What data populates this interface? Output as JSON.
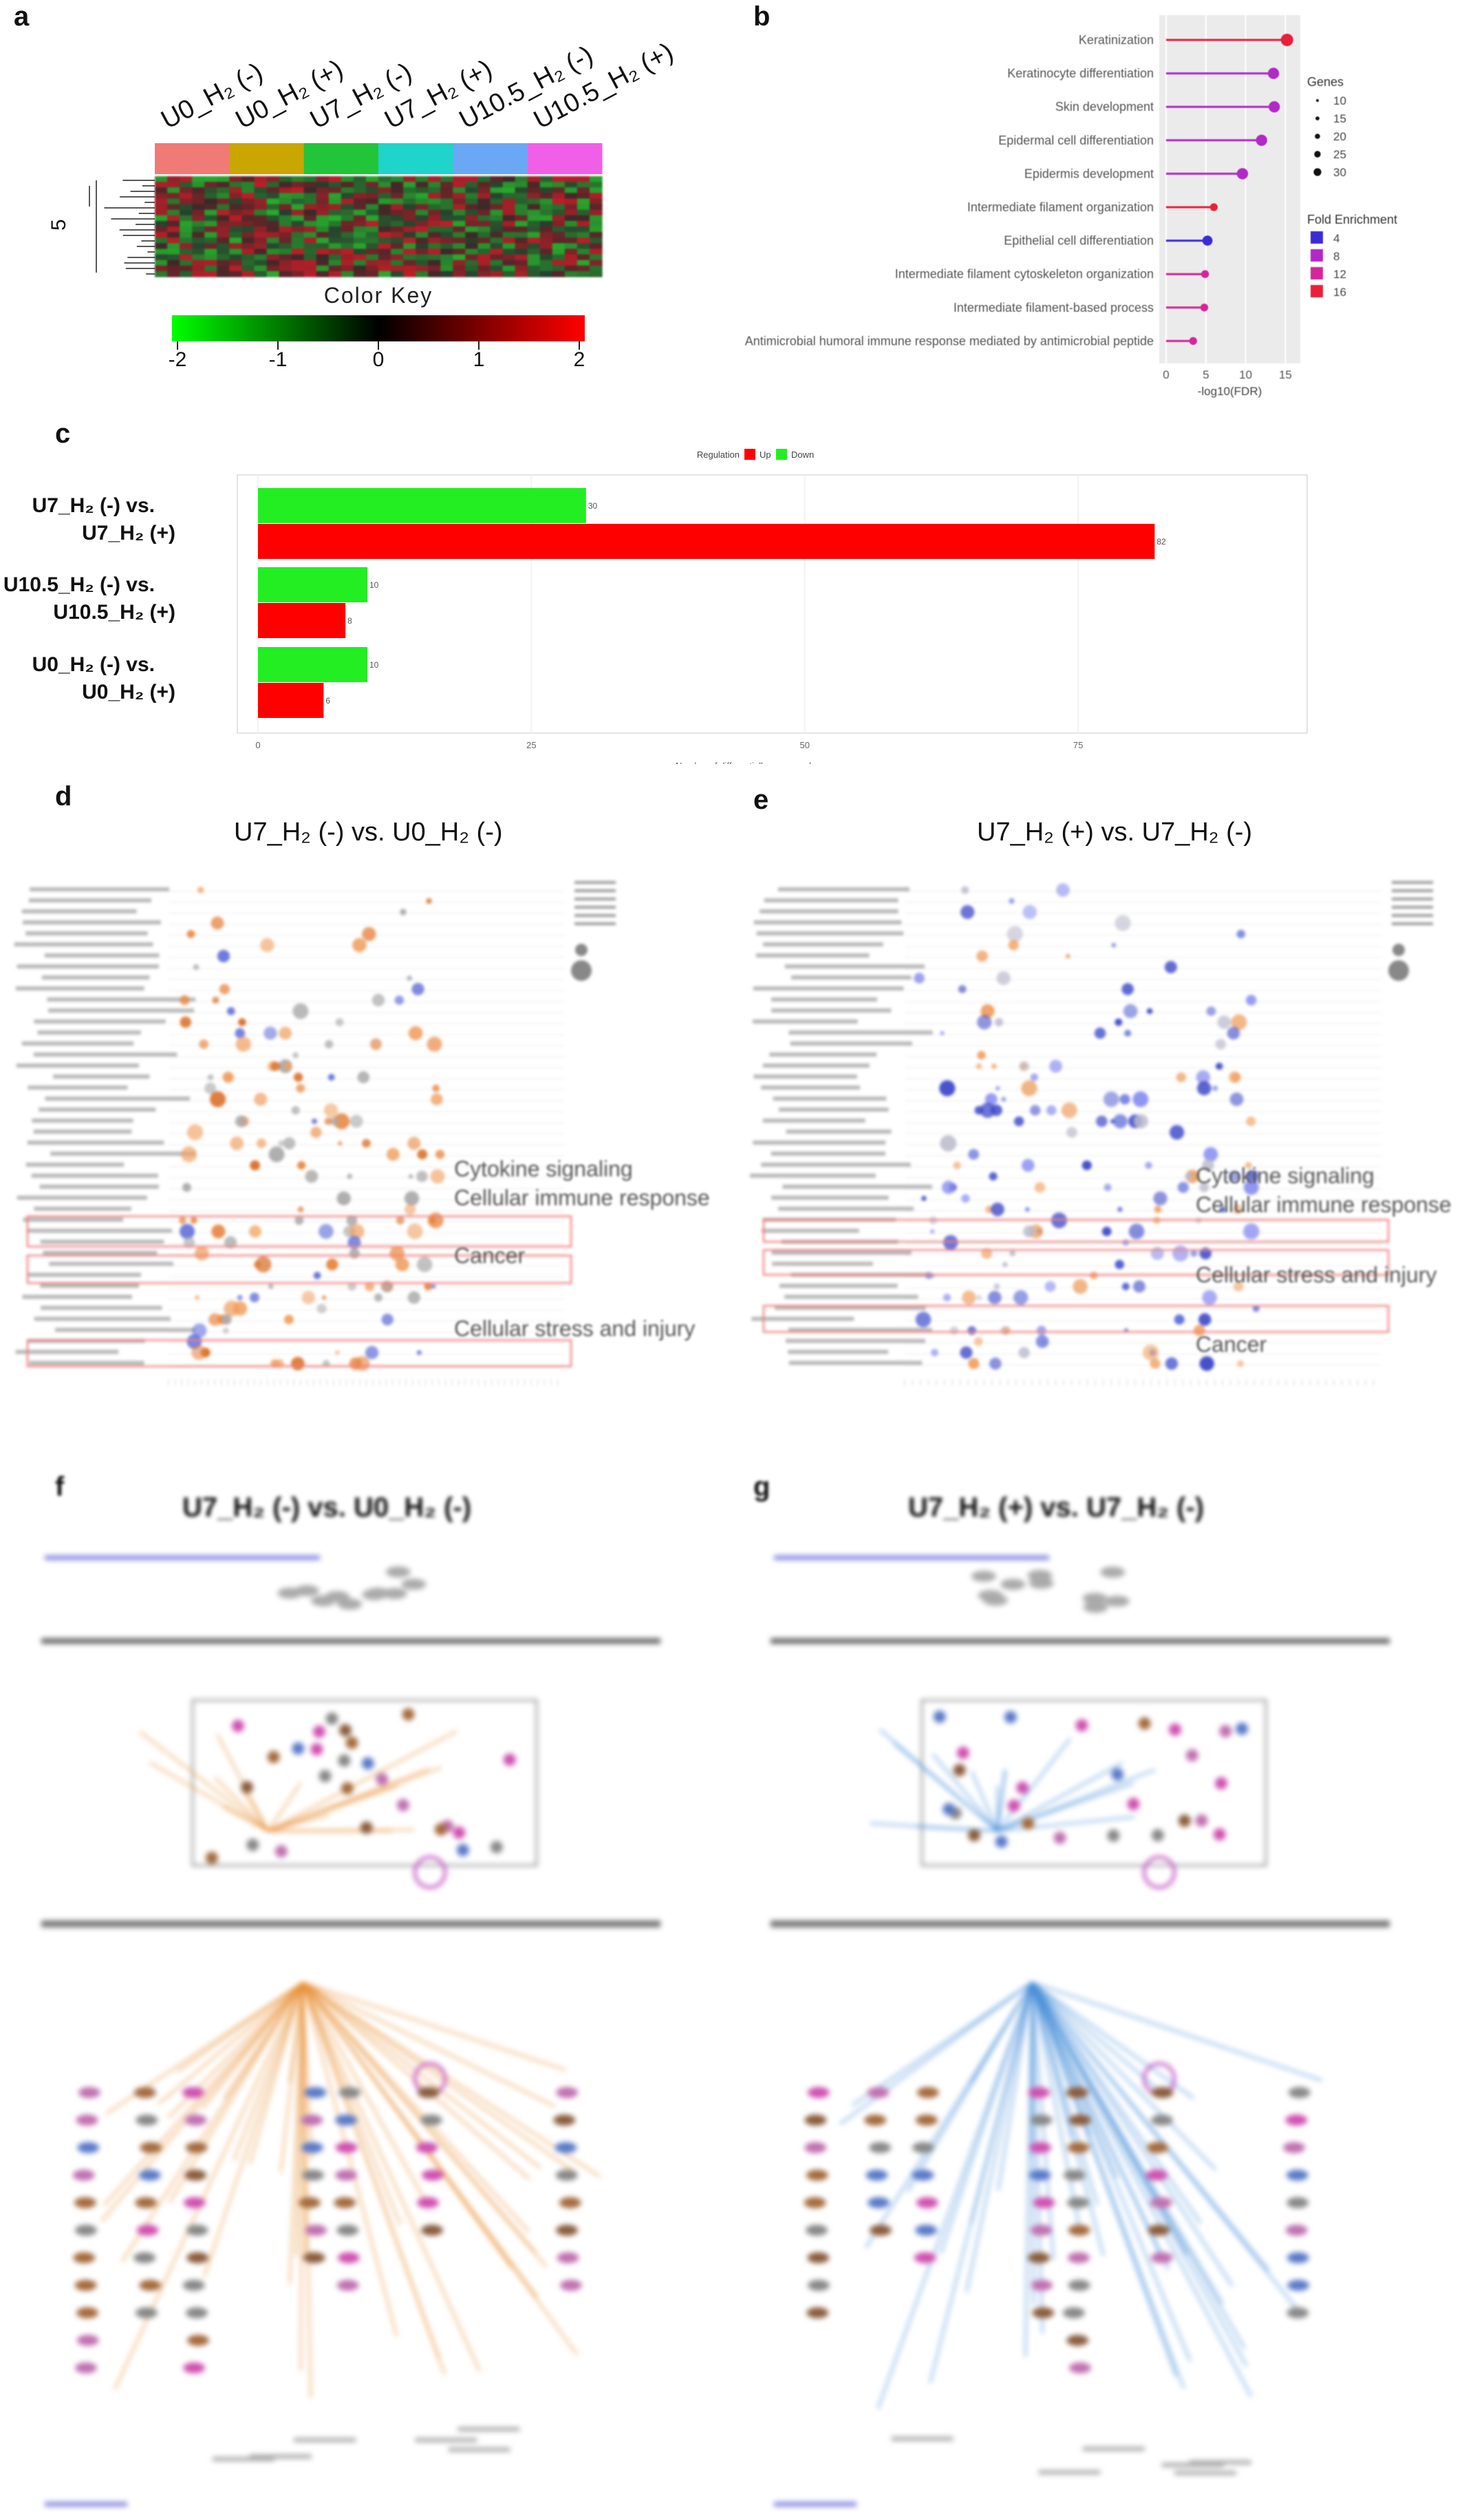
{
  "panels": {
    "a": "a",
    "b": "b",
    "c": "c",
    "d": "d",
    "e": "e",
    "f": "f",
    "g": "g"
  },
  "panel_a": {
    "columns": [
      "U0_H₂ (-)",
      "U0_H₂ (+)",
      "U7_H₂ (-)",
      "U7_H₂ (+)",
      "U10.5_H₂ (-)",
      "U10.5_H₂ (+)"
    ],
    "column_colors": [
      "#f07a75",
      "#c9a600",
      "#22c43a",
      "#1fd4c8",
      "#6aa8f5",
      "#f060e6"
    ],
    "row_axis_label": "5",
    "color_key_title": "Color Key",
    "color_key_ticks": [
      "-2",
      "-1",
      "0",
      "1",
      "2"
    ]
  },
  "panel_b": {
    "chart_data": {
      "type": "lollipop",
      "terms": [
        "Keratinization",
        "Keratinocyte differentiation",
        "Skin development",
        "Epidermal cell differentiation",
        "Epidermis development",
        "Intermediate filament organization",
        "Epithelial cell differentiation",
        "Intermediate filament cytoskeleton organization",
        "Intermediate filament-based process",
        "Antimicrobial humoral immune response mediated by antimicrobial peptide"
      ],
      "neg_log10_fdr": [
        15.2,
        13.5,
        13.6,
        12.0,
        9.6,
        6.0,
        5.2,
        4.9,
        4.8,
        3.4
      ],
      "genes": [
        30,
        25,
        25,
        25,
        25,
        10,
        20,
        10,
        10,
        10
      ],
      "fold_enrichment": [
        16,
        9,
        8,
        9,
        8,
        16,
        4,
        12,
        12,
        12
      ],
      "xlabel": "-log10(FDR)",
      "xticks": [
        "0",
        "5",
        "10",
        "15"
      ],
      "xlim": [
        0,
        16
      ],
      "legend_genes_title": "Genes",
      "legend_genes": [
        "10",
        "15",
        "20",
        "25",
        "30"
      ],
      "legend_fe_title": "Fold Enrichment",
      "legend_fe": [
        "4",
        "8",
        "12",
        "16"
      ],
      "legend_fe_colors": [
        "#3b2bd6",
        "#b228c8",
        "#d6249a",
        "#e8203a"
      ]
    }
  },
  "panel_c": {
    "chart_data": {
      "type": "bar",
      "categories": [
        "U7_H₂ (-) vs. U7_H₂ (+)",
        "U10.5_H₂ (-) vs. U10.5_H₂ (+)",
        "U0_H₂ (-) vs. U0_H₂ (+)"
      ],
      "category_lines": [
        [
          "U7_H₂ (-) vs.",
          "U7_H₂ (+)"
        ],
        [
          "U10.5_H₂ (-) vs.",
          "U10.5_H₂ (+)"
        ],
        [
          "U0_H₂ (-) vs.",
          "U0_H₂ (+)"
        ]
      ],
      "series": [
        {
          "name": "Down",
          "values": [
            30,
            10,
            10
          ],
          "color": "#22ee22"
        },
        {
          "name": "Up",
          "values": [
            82,
            8,
            6
          ],
          "color": "#ff0000"
        }
      ],
      "legend_title": "Regulation",
      "xlabel": "Number of differentially expressed genes",
      "xticks": [
        "0",
        "25",
        "50",
        "75"
      ],
      "xlim": [
        0,
        95
      ]
    }
  },
  "panel_d": {
    "title": "U7_H₂ (-) vs. U0_H₂ (-)",
    "annotations": [
      "Cytokine signaling",
      "Cellular immune response",
      "Cancer",
      "Cellular stress and injury"
    ]
  },
  "panel_e": {
    "title": "U7_H₂ (+) vs. U7_H₂ (-)",
    "annotations": [
      "Cytokine signaling",
      "Cellular immune response",
      "Cellular stress and injury",
      "Cancer"
    ]
  },
  "panel_f": {
    "title": "U7_H₂ (-) vs. U0_H₂ (-)",
    "edge_color": "#e8923a"
  },
  "panel_g": {
    "title": "U7_H₂ (+) vs. U7_H₂ (-)",
    "edge_color": "#4a8fd8"
  }
}
